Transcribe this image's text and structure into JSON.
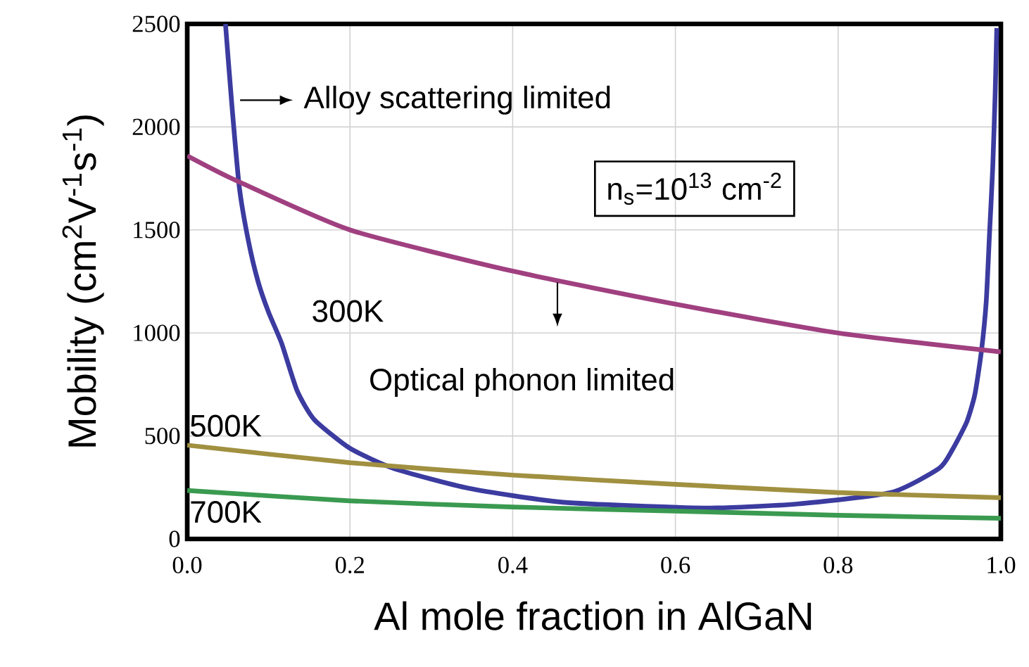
{
  "chart_data": {
    "type": "line",
    "xlabel": "Al mole fraction in AlGaN",
    "ylabel": "Mobility (cm$^{2}$V$^{-1}$s$^{-1}$)",
    "xlim": [
      0,
      1
    ],
    "ylim": [
      0,
      2500
    ],
    "xticks": [
      {
        "value": 0,
        "label": "0.0"
      },
      {
        "value": 0.2,
        "label": "0.2"
      },
      {
        "value": 0.4,
        "label": "0.4"
      },
      {
        "value": 0.6,
        "label": "0.6"
      },
      {
        "value": 0.8,
        "label": "0.8"
      },
      {
        "value": 1,
        "label": "1.0"
      }
    ],
    "yticks": [
      0,
      500,
      1000,
      1500,
      2000,
      2500
    ],
    "grid": true,
    "marker": "none",
    "line_style": "solid",
    "series": [
      {
        "color": "#3b3ba0",
        "x": [
          0.047,
          0.055,
          0.064,
          0.075,
          0.087,
          0.1,
          0.116,
          0.135,
          0.156,
          0.2,
          0.254,
          0.346,
          0.462,
          0.635,
          0.75,
          0.865,
          0.924,
          0.94,
          0.958,
          0.968,
          0.976,
          0.982,
          0.986,
          0.99,
          0.993,
          0.995
        ],
        "values": [
          2500,
          2100,
          1708,
          1450,
          1250,
          1100,
          950,
          720,
          580,
          440,
          342,
          246,
          178,
          150,
          170,
          225,
          342,
          430,
          567,
          700,
          908,
          1150,
          1475,
          1800,
          2160,
          2480
        ]
      },
      {
        "name": "300K",
        "color": "#a04080",
        "x": [
          0,
          0.06,
          0.2,
          0.4,
          0.6,
          0.8,
          1.0
        ],
        "values": [
          1860,
          1740,
          1500,
          1300,
          1140,
          1000,
          908
        ]
      },
      {
        "name": "500K",
        "color": "#a09040",
        "x": [
          0,
          0.2,
          0.4,
          0.6,
          0.8,
          1.0
        ],
        "values": [
          455,
          370,
          310,
          265,
          225,
          200
        ]
      },
      {
        "name": "700K",
        "color": "#3a9a50",
        "x": [
          0,
          0.2,
          0.4,
          0.6,
          0.8,
          1.0
        ],
        "values": [
          235,
          185,
          155,
          135,
          115,
          100
        ]
      }
    ],
    "annotations": [
      "Alloy scattering limited",
      "Optical phonon limited",
      "n$_{s}$=10$^{13}$ cm$^{-2}$"
    ]
  }
}
